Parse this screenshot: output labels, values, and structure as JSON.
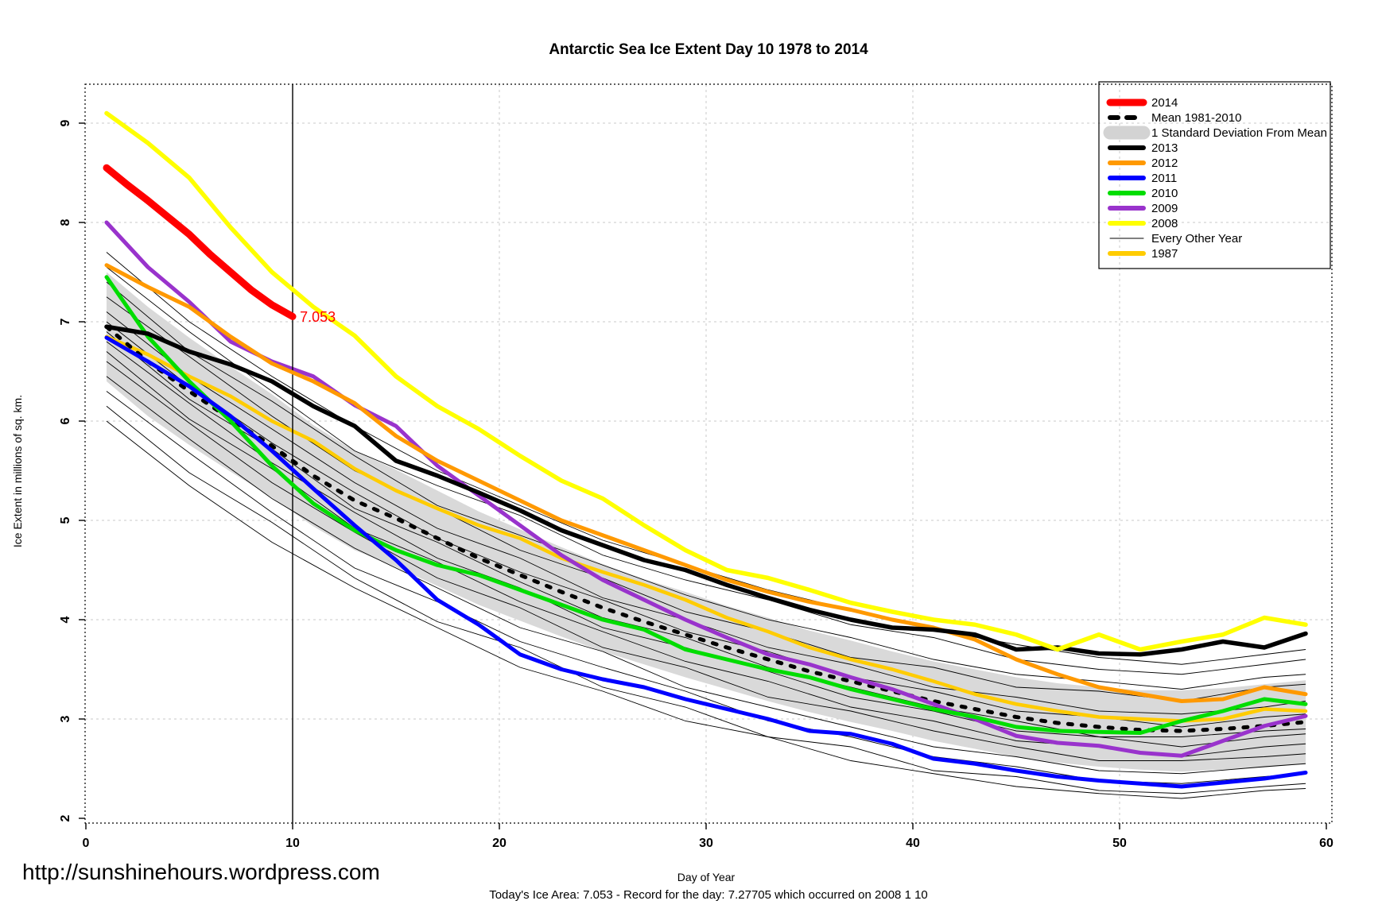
{
  "header": {
    "title": "Antarctic Sea Ice Extent Day 10 1978 to 2014"
  },
  "footer": {
    "url": "http://sunshinehours.wordpress.com",
    "caption": "Today's Ice Area: 7.053  - Record for the day: 7.27705 which occurred on 2008 1 10"
  },
  "chart_data": {
    "type": "line",
    "title": "Antarctic Sea Ice Extent Day 10 1978 to 2014",
    "xlabel": "Day of Year",
    "ylabel": "Ice Extent in millions of sq. km.",
    "xlim": [
      0,
      60
    ],
    "ylim": [
      2,
      9.4
    ],
    "xticks": [
      0,
      10,
      20,
      30,
      40,
      50,
      60
    ],
    "yticks": [
      2,
      3,
      4,
      5,
      6,
      7,
      8,
      9
    ],
    "grid": {
      "show": true,
      "color": "#c8c8c8",
      "style": "dashed"
    },
    "marker_line_x": 10,
    "annotation": {
      "text": "7.053",
      "x": 10.35,
      "y": 7.05,
      "color": "#ff0000"
    },
    "band": {
      "name": "1 Standard Deviation From Mean",
      "color": "#d9d9d9",
      "x": [
        1,
        3,
        5,
        7,
        9,
        11,
        13,
        15,
        17,
        19,
        21,
        23,
        25,
        27,
        29,
        31,
        33,
        35,
        37,
        39,
        41,
        43,
        45,
        47,
        49,
        51,
        53,
        55,
        57,
        59
      ],
      "upper": [
        7.5,
        7.15,
        6.84,
        6.55,
        6.27,
        5.96,
        5.7,
        5.51,
        5.3,
        5.09,
        4.91,
        4.73,
        4.56,
        4.41,
        4.28,
        4.14,
        4.02,
        3.89,
        3.79,
        3.68,
        3.58,
        3.5,
        3.42,
        3.36,
        3.32,
        3.29,
        3.29,
        3.31,
        3.35,
        3.39
      ],
      "lower": [
        6.4,
        6.05,
        5.76,
        5.49,
        5.23,
        4.94,
        4.7,
        4.53,
        4.34,
        4.15,
        3.99,
        3.83,
        3.68,
        3.55,
        3.42,
        3.3,
        3.18,
        3.07,
        2.97,
        2.88,
        2.78,
        2.7,
        2.62,
        2.56,
        2.52,
        2.49,
        2.47,
        2.49,
        2.51,
        2.55
      ]
    },
    "x_main": [
      1,
      3,
      5,
      7,
      9,
      11,
      13,
      15,
      17,
      19,
      21,
      23,
      25,
      27,
      29,
      31,
      33,
      35,
      37,
      39,
      41,
      43,
      45,
      47,
      49,
      51,
      53,
      55,
      57,
      59
    ],
    "series": [
      {
        "name": "1987",
        "color": "#ffcc00",
        "width": 4.5,
        "before_marker": true,
        "y": [
          6.85,
          6.67,
          6.45,
          6.25,
          6.0,
          5.8,
          5.52,
          5.3,
          5.12,
          4.95,
          4.82,
          4.62,
          4.48,
          4.35,
          4.2,
          4.02,
          3.88,
          3.72,
          3.6,
          3.5,
          3.38,
          3.25,
          3.15,
          3.08,
          3.02,
          3.0,
          2.98,
          3.0,
          3.1,
          3.08
        ]
      },
      {
        "name": "Mean 1981-2010",
        "color": "#000000",
        "width": 5,
        "dash": "5 12",
        "before_marker": true,
        "y": [
          6.95,
          6.6,
          6.3,
          6.02,
          5.75,
          5.45,
          5.2,
          5.02,
          4.82,
          4.62,
          4.45,
          4.28,
          4.12,
          3.98,
          3.85,
          3.72,
          3.6,
          3.48,
          3.38,
          3.28,
          3.18,
          3.1,
          3.02,
          2.96,
          2.92,
          2.89,
          2.88,
          2.9,
          2.93,
          2.97
        ]
      },
      {
        "name": "2009",
        "color": "#9933cc",
        "width": 5,
        "before_marker": true,
        "y": [
          8.0,
          7.55,
          7.2,
          6.8,
          6.6,
          6.45,
          6.16,
          5.95,
          5.55,
          5.25,
          4.95,
          4.65,
          4.4,
          4.2,
          4.0,
          3.82,
          3.65,
          3.55,
          3.42,
          3.3,
          3.15,
          3.0,
          2.83,
          2.76,
          2.73,
          2.66,
          2.63,
          2.78,
          2.93,
          3.03
        ]
      },
      {
        "name": "2010",
        "color": "#00dd00",
        "width": 5,
        "before_marker": false,
        "y": [
          7.45,
          6.85,
          6.4,
          6.0,
          5.55,
          5.17,
          4.9,
          4.7,
          4.55,
          4.45,
          4.3,
          4.15,
          4.0,
          3.9,
          3.7,
          3.6,
          3.5,
          3.42,
          3.3,
          3.2,
          3.1,
          3.02,
          2.92,
          2.88,
          2.87,
          2.86,
          2.98,
          3.08,
          3.2,
          3.15
        ]
      },
      {
        "name": "2011",
        "color": "#0000ff",
        "width": 5,
        "before_marker": false,
        "y": [
          6.84,
          6.6,
          6.35,
          6.05,
          5.7,
          5.32,
          4.95,
          4.6,
          4.2,
          3.95,
          3.65,
          3.5,
          3.4,
          3.32,
          3.2,
          3.1,
          3.0,
          2.88,
          2.85,
          2.75,
          2.6,
          2.55,
          2.48,
          2.42,
          2.38,
          2.35,
          2.32,
          2.36,
          2.4,
          2.46
        ]
      },
      {
        "name": "2012",
        "color": "#ff9900",
        "width": 5,
        "before_marker": false,
        "y": [
          7.57,
          7.35,
          7.15,
          6.85,
          6.58,
          6.4,
          6.18,
          5.85,
          5.6,
          5.4,
          5.2,
          5.0,
          4.85,
          4.7,
          4.55,
          4.4,
          4.28,
          4.18,
          4.1,
          4.0,
          3.92,
          3.8,
          3.6,
          3.45,
          3.32,
          3.25,
          3.18,
          3.2,
          3.32,
          3.25
        ]
      },
      {
        "name": "2013",
        "color": "#000000",
        "width": 5.5,
        "before_marker": false,
        "y": [
          6.95,
          6.88,
          6.7,
          6.57,
          6.4,
          6.15,
          5.95,
          5.6,
          5.45,
          5.28,
          5.1,
          4.9,
          4.75,
          4.6,
          4.5,
          4.35,
          4.22,
          4.1,
          4.0,
          3.92,
          3.9,
          3.85,
          3.7,
          3.72,
          3.66,
          3.65,
          3.7,
          3.78,
          3.72,
          3.86
        ]
      },
      {
        "name": "2008",
        "color": "#ffff00",
        "width": 5.5,
        "before_marker": false,
        "y": [
          9.1,
          8.8,
          8.45,
          7.95,
          7.5,
          7.15,
          6.86,
          6.45,
          6.15,
          5.92,
          5.65,
          5.4,
          5.22,
          4.95,
          4.7,
          4.5,
          4.42,
          4.3,
          4.17,
          4.08,
          4.0,
          3.95,
          3.85,
          3.7,
          3.85,
          3.7,
          3.78,
          3.85,
          4.02,
          3.95
        ]
      }
    ],
    "series_2014": {
      "name": "2014",
      "color": "#ff0000",
      "width": 9,
      "x": [
        1,
        2,
        3,
        4,
        5,
        6,
        7,
        8,
        9,
        10
      ],
      "y": [
        8.55,
        8.38,
        8.22,
        8.05,
        7.88,
        7.68,
        7.5,
        7.32,
        7.17,
        7.053
      ]
    },
    "other_years": {
      "name": "Every Other Year",
      "color": "#000000",
      "width": 0.9,
      "x": [
        1,
        5,
        9,
        13,
        17,
        21,
        25,
        29,
        33,
        37,
        41,
        45,
        49,
        53,
        57,
        59
      ],
      "lines": [
        [
          7.7,
          7.0,
          6.45,
          5.95,
          5.5,
          5.15,
          4.8,
          4.55,
          4.3,
          4.1,
          3.9,
          3.75,
          3.62,
          3.55,
          3.65,
          3.7
        ],
        [
          7.55,
          6.9,
          6.3,
          5.7,
          5.35,
          5.05,
          4.65,
          4.4,
          4.2,
          3.95,
          3.82,
          3.6,
          3.5,
          3.45,
          3.55,
          3.6
        ],
        [
          7.4,
          6.7,
          6.2,
          5.65,
          5.15,
          4.85,
          4.55,
          4.25,
          4.0,
          3.82,
          3.6,
          3.45,
          3.38,
          3.3,
          3.42,
          3.45
        ],
        [
          7.25,
          6.65,
          6.05,
          5.5,
          5.12,
          4.7,
          4.42,
          4.08,
          3.88,
          3.62,
          3.52,
          3.32,
          3.28,
          3.18,
          3.32,
          3.35
        ],
        [
          7.1,
          6.45,
          5.92,
          5.38,
          4.92,
          4.62,
          4.22,
          4.0,
          3.72,
          3.55,
          3.32,
          3.22,
          3.08,
          3.05,
          3.12,
          3.18
        ],
        [
          7.0,
          6.35,
          5.78,
          5.28,
          4.82,
          4.48,
          4.2,
          3.88,
          3.68,
          3.42,
          3.28,
          3.08,
          3.02,
          2.92,
          3.02,
          3.05
        ],
        [
          6.9,
          6.22,
          5.72,
          5.12,
          4.78,
          4.38,
          4.02,
          3.82,
          3.52,
          3.32,
          3.12,
          2.98,
          2.82,
          2.82,
          2.88,
          2.9
        ],
        [
          6.8,
          6.18,
          5.58,
          5.08,
          4.62,
          4.32,
          3.92,
          3.72,
          3.48,
          3.22,
          3.08,
          2.88,
          2.82,
          2.72,
          2.82,
          2.85
        ],
        [
          6.7,
          6.02,
          5.52,
          4.92,
          4.58,
          4.18,
          3.88,
          3.58,
          3.38,
          3.12,
          2.98,
          2.78,
          2.72,
          2.62,
          2.72,
          2.75
        ],
        [
          6.6,
          5.98,
          5.38,
          4.88,
          4.42,
          4.12,
          3.72,
          3.52,
          3.22,
          3.08,
          2.88,
          2.72,
          2.58,
          2.58,
          2.62,
          2.65
        ],
        [
          6.45,
          5.82,
          5.22,
          4.72,
          4.32,
          3.92,
          3.68,
          3.32,
          3.12,
          2.92,
          2.72,
          2.62,
          2.48,
          2.45,
          2.52,
          2.55
        ],
        [
          6.3,
          5.68,
          5.08,
          4.52,
          4.18,
          3.78,
          3.52,
          3.28,
          2.98,
          2.82,
          2.62,
          2.52,
          2.38,
          2.35,
          2.42,
          2.45
        ],
        [
          6.15,
          5.48,
          4.98,
          4.42,
          3.98,
          3.72,
          3.32,
          3.12,
          2.82,
          2.72,
          2.48,
          2.42,
          2.28,
          2.25,
          2.32,
          2.35
        ],
        [
          6.0,
          5.35,
          4.78,
          4.32,
          3.92,
          3.52,
          3.28,
          2.98,
          2.82,
          2.58,
          2.45,
          2.32,
          2.25,
          2.2,
          2.28,
          2.3
        ]
      ]
    },
    "legend": {
      "position": "top-right",
      "items": [
        {
          "label": "2014",
          "color": "#ff0000",
          "style": "extra-thick"
        },
        {
          "label": "Mean 1981-2010",
          "color": "#000000",
          "style": "dashed"
        },
        {
          "label": "1 Standard Deviation From Mean",
          "color": "#d3d3d3",
          "style": "band"
        },
        {
          "label": "2013",
          "color": "#000000",
          "style": "thick"
        },
        {
          "label": "2012",
          "color": "#ff9900",
          "style": "thick"
        },
        {
          "label": "2011",
          "color": "#0000ff",
          "style": "thick"
        },
        {
          "label": "2010",
          "color": "#00dd00",
          "style": "thick"
        },
        {
          "label": "2009",
          "color": "#9933cc",
          "style": "thick"
        },
        {
          "label": "2008",
          "color": "#ffff00",
          "style": "thick"
        },
        {
          "label": "Every Other Year",
          "color": "#000000",
          "style": "thin"
        },
        {
          "label": "1987",
          "color": "#ffcc00",
          "style": "thick"
        }
      ]
    }
  }
}
